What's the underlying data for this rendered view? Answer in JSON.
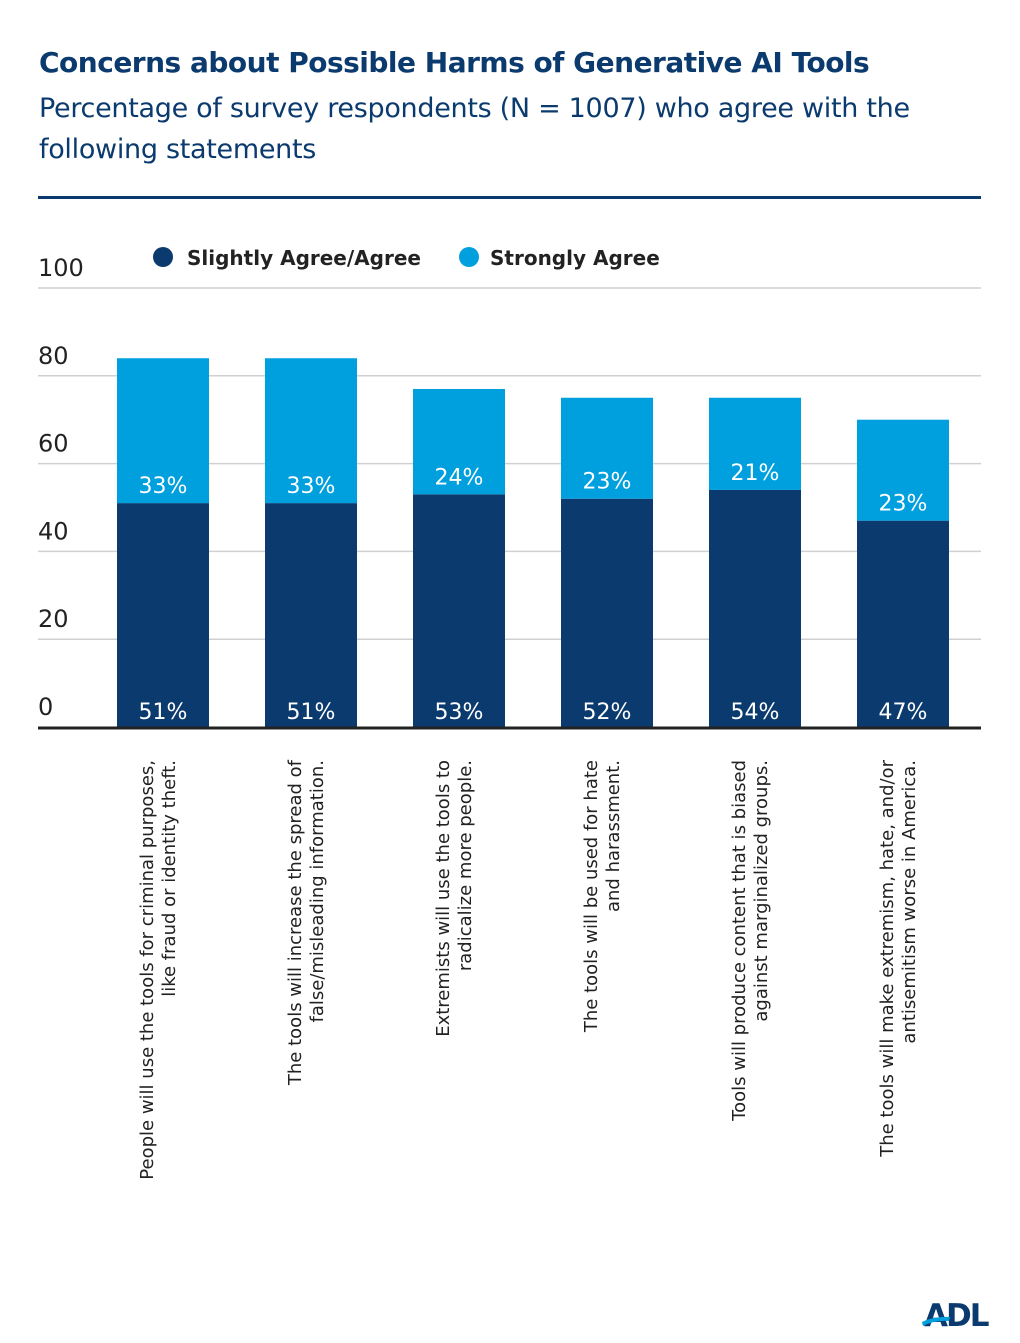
{
  "chart_data": {
    "type": "bar",
    "stacked": true,
    "title": "Concerns about Possible Harms of Generative AI Tools",
    "subtitle": "Percentage of survey respondents (N = 1007) who agree with the following statements",
    "categories": [
      [
        "People will use the tools for criminal purposes,",
        "like fraud or identity theft."
      ],
      [
        "The tools will increase the spread of",
        "false/misleading information."
      ],
      [
        "Extremists will use the tools to",
        "radicalize more people."
      ],
      [
        "The tools will be used for hate",
        "and harassment."
      ],
      [
        "Tools will produce content that is biased",
        "against marginalized groups."
      ],
      [
        "The tools will make extremism, hate, and/or",
        "antisemitism worse in America."
      ]
    ],
    "series": [
      {
        "name": "Slightly Agree/Agree",
        "color": "#0b3a6e",
        "values": [
          51,
          51,
          53,
          52,
          54,
          47
        ]
      },
      {
        "name": "Strongly Agree",
        "color": "#009fde",
        "values": [
          33,
          33,
          24,
          23,
          21,
          23
        ]
      }
    ],
    "ylim": [
      0,
      100
    ],
    "yticks": [
      0,
      20,
      40,
      60,
      80,
      100
    ],
    "grid": true,
    "legend": "top",
    "value_suffix": "%"
  },
  "logo": "ADL"
}
